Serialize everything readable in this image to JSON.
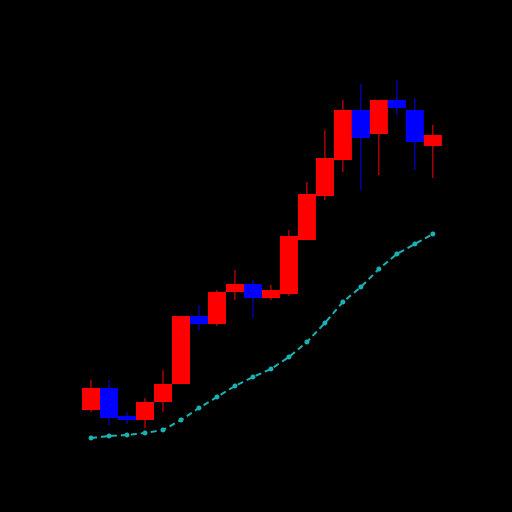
{
  "chart_data": {
    "type": "candlestick",
    "x": [
      1,
      2,
      3,
      4,
      5,
      6,
      7,
      8,
      9,
      10,
      11,
      12,
      13,
      14,
      15,
      16,
      17,
      18,
      19,
      20
    ],
    "open": [
      102,
      124,
      96,
      92,
      110,
      128,
      196,
      188,
      220,
      228,
      214,
      218,
      272,
      316,
      352,
      402,
      378,
      412,
      402,
      366
    ],
    "high": [
      132,
      132,
      100,
      114,
      142,
      196,
      207,
      222,
      242,
      232,
      227,
      282,
      330,
      382,
      412,
      428,
      412,
      432,
      414,
      387
    ],
    "low": [
      100,
      87,
      88,
      84,
      100,
      128,
      182,
      186,
      212,
      194,
      212,
      216,
      272,
      312,
      340,
      322,
      337,
      397,
      342,
      334
    ],
    "close": [
      124,
      94,
      92,
      110,
      128,
      196,
      188,
      220,
      228,
      214,
      222,
      276,
      318,
      354,
      402,
      374,
      412,
      404,
      370,
      377
    ],
    "up_color": "#ff0000",
    "down_color": "#0000ff",
    "moving_average": {
      "color": "#1ab2b2",
      "dashed": true,
      "values": [
        74,
        76,
        77,
        79,
        82,
        92,
        104,
        115,
        126,
        135,
        143,
        155,
        170,
        189,
        210,
        225,
        243,
        258,
        268,
        278
      ]
    },
    "xlim": [
      -4.06,
      24.4
    ],
    "ylim": [
      0,
      512
    ]
  }
}
